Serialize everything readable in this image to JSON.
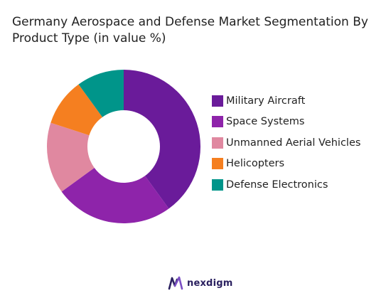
{
  "chart_data": {
    "type": "pie",
    "title": "Germany Aerospace and Defense Market Segmentation By Product Type (in value %)",
    "legend_position": "right",
    "categories": [
      "Military Aircraft",
      "Space Systems",
      "Unmanned Aerial Vehicles",
      "Helicopters",
      "Defense Electronics"
    ],
    "values": [
      40,
      25,
      15,
      10,
      10
    ],
    "colors": [
      "#6a1b9a",
      "#8e24aa",
      "#e088a0",
      "#f57f20",
      "#00958a"
    ]
  },
  "brand": {
    "name": "nexdigm",
    "color": "#2b2160"
  }
}
